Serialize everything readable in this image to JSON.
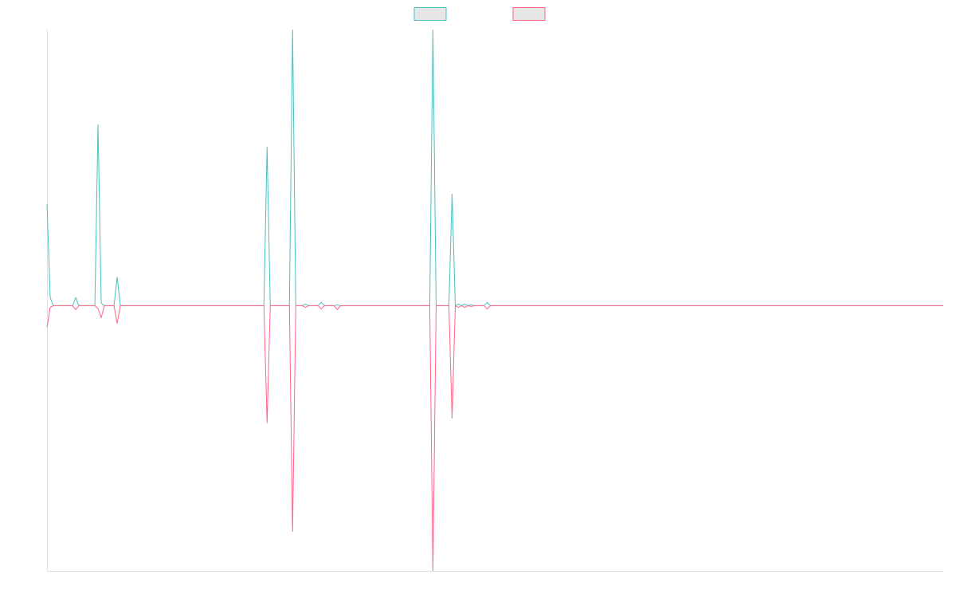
{
  "chart_data": {
    "type": "line",
    "x": [
      0,
      1,
      2,
      8,
      9,
      10,
      15,
      16,
      17,
      18,
      21,
      22,
      23,
      68,
      69,
      70,
      76,
      77,
      78,
      80,
      81,
      82,
      85,
      86,
      87,
      90,
      91,
      92,
      120,
      121,
      122,
      126,
      127,
      128,
      129,
      130,
      131,
      132,
      133,
      134,
      137,
      138,
      139,
      281
    ],
    "series": [
      {
        "color": "#4bc0c0",
        "values": [
          36.7,
          2.9,
          0,
          0,
          2.9,
          0,
          0,
          65.6,
          0.9,
          0,
          0,
          10.4,
          0,
          0,
          57.5,
          0,
          0,
          100,
          0,
          0,
          0.6,
          0,
          0,
          1.2,
          0,
          0,
          0.3,
          0,
          0,
          100,
          0,
          0,
          40.5,
          0,
          0.6,
          0,
          0.6,
          0,
          0.3,
          0,
          0,
          1.2,
          0,
          0
        ]
      },
      {
        "color": "#ff6384",
        "values": [
          -7.8,
          -0.6,
          0,
          0,
          -1.4,
          0,
          0,
          -1,
          -4.3,
          0,
          0,
          -6.4,
          0,
          0,
          -42.5,
          0,
          0,
          -81.8,
          0,
          0,
          -0.6,
          0,
          0,
          -1.2,
          0,
          0,
          -1.4,
          0,
          0,
          -96,
          0,
          0,
          -40.8,
          0,
          -0.6,
          0,
          -0.6,
          0,
          -0.3,
          0,
          0,
          -1.2,
          0,
          0
        ]
      }
    ],
    "xlim": [
      0,
      281
    ],
    "ylim": [
      -96,
      100
    ],
    "grid": false,
    "legend": "top"
  }
}
